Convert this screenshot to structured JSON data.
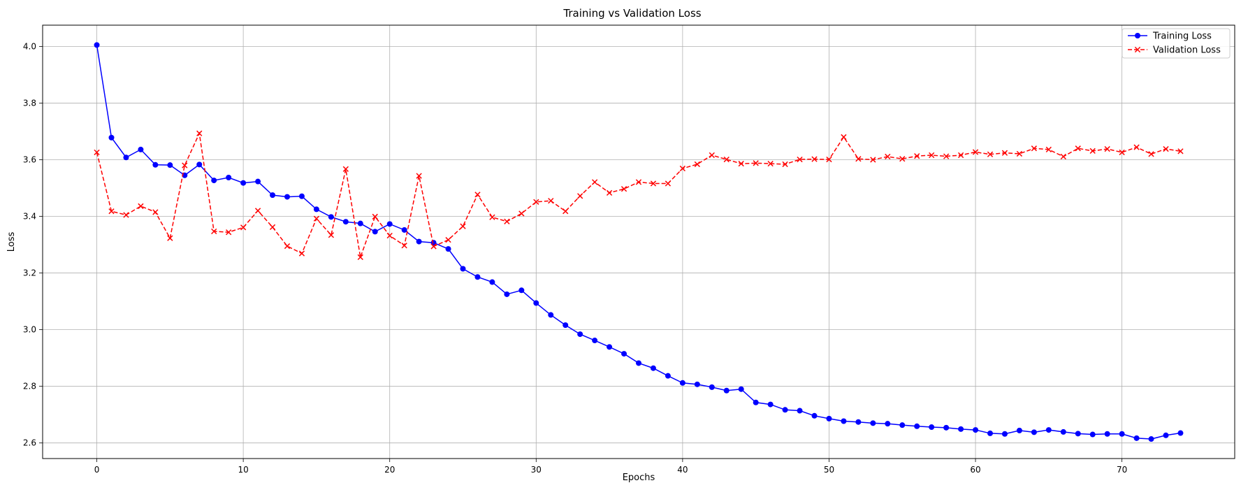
{
  "chart_data": {
    "type": "line",
    "title": "Training vs Validation Loss",
    "xlabel": "Epochs",
    "ylabel": "Loss",
    "xlim": [
      -3.7,
      77.7
    ],
    "ylim": [
      2.545,
      4.075
    ],
    "x_ticks": [
      0,
      10,
      20,
      30,
      40,
      50,
      60,
      70
    ],
    "y_ticks": [
      2.6,
      2.8,
      3.0,
      3.2,
      3.4,
      3.6,
      3.8,
      4.0
    ],
    "grid": true,
    "legend_position": "top-right",
    "x": [
      0,
      1,
      2,
      3,
      4,
      5,
      6,
      7,
      8,
      9,
      10,
      11,
      12,
      13,
      14,
      15,
      16,
      17,
      18,
      19,
      20,
      21,
      22,
      23,
      24,
      25,
      26,
      27,
      28,
      29,
      30,
      31,
      32,
      33,
      34,
      35,
      36,
      37,
      38,
      39,
      40,
      41,
      42,
      43,
      44,
      45,
      46,
      47,
      48,
      49,
      50,
      51,
      52,
      53,
      54,
      55,
      56,
      57,
      58,
      59,
      60,
      61,
      62,
      63,
      64,
      65,
      66,
      67,
      68,
      69,
      70,
      71,
      72,
      73,
      74
    ],
    "series": [
      {
        "name": "Training Loss",
        "color": "#0000ff",
        "style": "solid",
        "marker": "circle",
        "values": [
          4.005,
          3.678,
          3.608,
          3.636,
          3.582,
          3.581,
          3.545,
          3.583,
          3.527,
          3.537,
          3.518,
          3.523,
          3.475,
          3.469,
          3.471,
          3.425,
          3.398,
          3.381,
          3.375,
          3.346,
          3.373,
          3.352,
          3.311,
          3.307,
          3.285,
          3.215,
          3.186,
          3.168,
          3.125,
          3.139,
          3.094,
          3.052,
          3.016,
          2.984,
          2.962,
          2.939,
          2.915,
          2.882,
          2.864,
          2.837,
          2.812,
          2.807,
          2.797,
          2.785,
          2.79,
          2.743,
          2.736,
          2.717,
          2.714,
          2.696,
          2.686,
          2.677,
          2.674,
          2.67,
          2.668,
          2.663,
          2.659,
          2.656,
          2.654,
          2.649,
          2.646,
          2.634,
          2.632,
          2.644,
          2.638,
          2.646,
          2.639,
          2.633,
          2.63,
          2.632,
          2.632,
          2.617,
          2.614,
          2.627,
          2.635
        ]
      },
      {
        "name": "Validation Loss",
        "color": "#ff0000",
        "style": "dashed",
        "marker": "x",
        "values": [
          3.626,
          3.418,
          3.405,
          3.436,
          3.415,
          3.323,
          3.58,
          3.693,
          3.347,
          3.344,
          3.361,
          3.42,
          3.362,
          3.295,
          3.269,
          3.392,
          3.334,
          3.567,
          3.256,
          3.399,
          3.332,
          3.297,
          3.543,
          3.294,
          3.317,
          3.365,
          3.477,
          3.397,
          3.382,
          3.41,
          3.451,
          3.455,
          3.418,
          3.472,
          3.521,
          3.483,
          3.497,
          3.521,
          3.516,
          3.516,
          3.569,
          3.584,
          3.616,
          3.601,
          3.586,
          3.588,
          3.586,
          3.584,
          3.601,
          3.602,
          3.601,
          3.68,
          3.603,
          3.6,
          3.611,
          3.603,
          3.613,
          3.616,
          3.612,
          3.616,
          3.627,
          3.619,
          3.624,
          3.621,
          3.64,
          3.636,
          3.611,
          3.64,
          3.631,
          3.638,
          3.626,
          3.644,
          3.62,
          3.638,
          3.63
        ]
      }
    ]
  }
}
